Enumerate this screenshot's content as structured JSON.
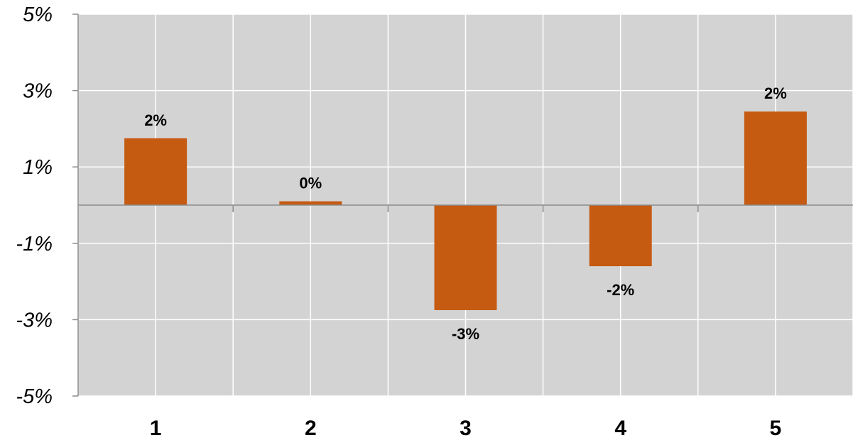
{
  "chart_data": {
    "type": "bar",
    "categories": [
      "1",
      "2",
      "3",
      "4",
      "5"
    ],
    "values": [
      1.75,
      0.1,
      -2.75,
      -1.6,
      2.45
    ],
    "data_labels": [
      "2%",
      "0%",
      "-3%",
      "-2%",
      "2%"
    ],
    "yticks": [
      5,
      3,
      1,
      -1,
      -3,
      -5
    ],
    "ytick_labels": [
      "5%",
      "3%",
      "1%",
      "-1%",
      "-3%",
      "-5%"
    ],
    "ylim": [
      -5,
      5
    ],
    "grid": true,
    "colors": {
      "bar": "#C55A11",
      "plot_background": "#D3D3D3",
      "gridline": "#FFFFFF",
      "axis": "#8C8C8C"
    }
  }
}
